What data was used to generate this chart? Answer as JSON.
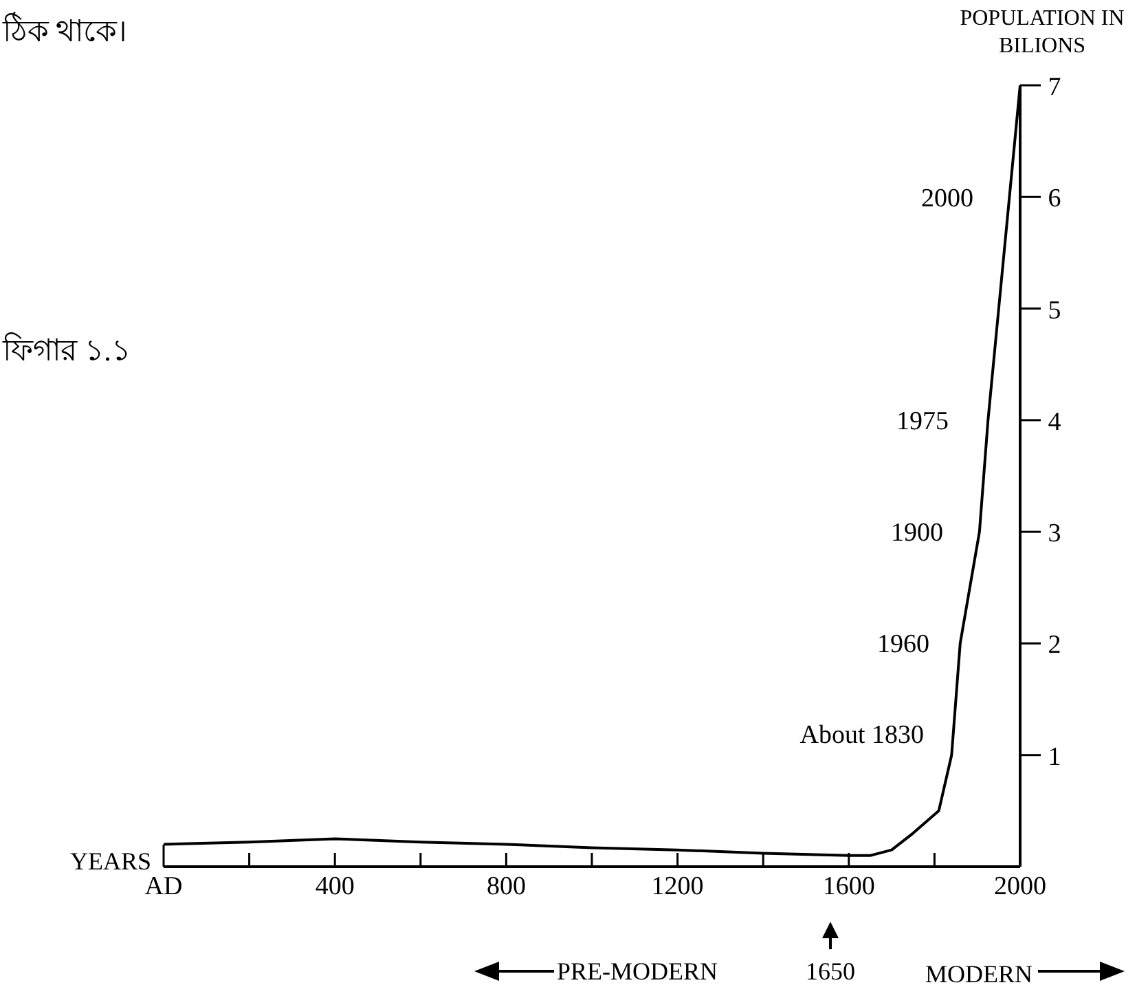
{
  "chart_data": {
    "type": "line",
    "xlabel": "YEARS",
    "ylabel": "POPULATION IN BILIONS",
    "x": [
      0,
      200,
      400,
      600,
      800,
      1000,
      1200,
      1400,
      1600,
      1650,
      1700,
      1750,
      1810,
      1840,
      1860,
      1905,
      1925,
      1950,
      1975,
      2000
    ],
    "series": [
      {
        "color": "#000000",
        "values": [
          0.2,
          0.22,
          0.25,
          0.22,
          0.2,
          0.17,
          0.15,
          0.12,
          0.1,
          0.1,
          0.15,
          0.3,
          0.5,
          1,
          2,
          3,
          4,
          5,
          6,
          7
        ]
      }
    ],
    "xlim": [
      0,
      2000
    ],
    "xticks": [
      {
        "value": 0,
        "label": "AD"
      },
      {
        "value": 200,
        "label": null
      },
      400,
      {
        "value": 600,
        "label": null
      },
      800,
      {
        "value": 1000,
        "label": null
      },
      1200,
      {
        "value": 1400,
        "label": null
      },
      1600,
      {
        "value": 1800,
        "label": null
      },
      2000
    ],
    "ylim": [
      0,
      7
    ],
    "yticks": [
      1,
      2,
      3,
      4,
      5,
      6,
      7
    ],
    "marker": "none",
    "line_style": "solid",
    "annotations": [
      "ঠিক থাকে।",
      "ফিগার ১.১",
      "PRE-MODERN",
      "1650",
      "MODERN",
      "2000",
      "1975",
      "1900",
      "1960",
      "About 1830"
    ]
  }
}
